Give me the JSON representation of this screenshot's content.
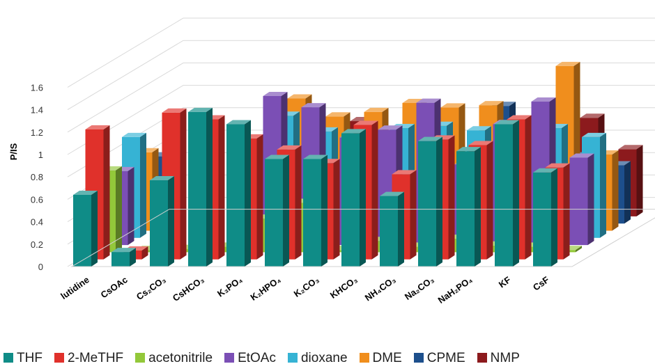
{
  "chart_data": {
    "type": "bar",
    "style": "3d-clustered-column",
    "title": "",
    "xlabel": "",
    "ylabel": "P/IS",
    "ylim": [
      0,
      1.6
    ],
    "yticks": [
      0,
      0.2,
      0.4,
      0.6,
      0.8,
      1,
      1.2,
      1.4,
      1.6
    ],
    "ytick_labels": [
      "0",
      "0.2",
      "0.4",
      "0.6",
      "0.8",
      "1",
      "1.2",
      "1.4",
      "1.6"
    ],
    "grid": true,
    "legend_position": "bottom",
    "categories": [
      "lutidine",
      "CsOAc",
      "Cs₂CO₃",
      "CsHCO₃",
      "K₃PO₄",
      "K₂HPO₄",
      "K₂CO₃",
      "KHCO₃",
      "NH₄CO₃",
      "Na₂CO₃",
      "NaH₂PO₄",
      "KF",
      "CsF"
    ],
    "series": [
      {
        "name": "THF",
        "color": "#0f8c87",
        "values": [
          0.64,
          0.13,
          0.77,
          1.38,
          1.27,
          0.96,
          0.96,
          1.19,
          0.63,
          1.12,
          1.03,
          1.27,
          0.84
        ]
      },
      {
        "name": "2-MeTHF",
        "color": "#e0312b",
        "values": [
          1.16,
          0.08,
          1.31,
          1.25,
          1.08,
          0.98,
          0.86,
          1.2,
          0.76,
          1.07,
          1.02,
          1.25,
          0.82
        ]
      },
      {
        "name": "acetonitrile",
        "color": "#93c83a",
        "values": [
          0.73,
          0.02,
          0.03,
          0.05,
          0.3,
          0.44,
          0.02,
          0.1,
          0.05,
          0.12,
          0.06,
          0.05,
          0.02
        ]
      },
      {
        "name": "EtOAc",
        "color": "#7b4fb5",
        "values": [
          0.66,
          0.0,
          0.0,
          0.0,
          1.33,
          1.23,
          0.96,
          1.03,
          1.27,
          0.72,
          1.08,
          1.28,
          0.78
        ]
      },
      {
        "name": "dioxane",
        "color": "#36b3d4",
        "values": [
          0.9,
          0.0,
          0.0,
          0.0,
          1.09,
          0.95,
          0.78,
          0.98,
          1.0,
          0.96,
          0.9,
          0.98,
          0.9
        ]
      },
      {
        "name": "DME",
        "color": "#f08e1d",
        "values": [
          0.7,
          0.0,
          0.0,
          0.0,
          1.18,
          1.02,
          1.06,
          1.14,
          1.1,
          1.12,
          0.8,
          1.47,
          0.68
        ]
      },
      {
        "name": "CPME",
        "color": "#1d4f8c",
        "values": [
          0.6,
          0.0,
          0.0,
          0.0,
          0.6,
          0.8,
          0.7,
          0.5,
          0.5,
          1.05,
          0.6,
          0.6,
          0.52
        ]
      },
      {
        "name": "NMP",
        "color": "#8c1a1d",
        "values": [
          0.3,
          0.0,
          0.0,
          0.0,
          0.3,
          0.85,
          0.3,
          0.3,
          0.3,
          0.3,
          0.3,
          0.88,
          0.6
        ]
      }
    ]
  },
  "legend": {
    "items": [
      {
        "label": "THF",
        "color": "#0f8c87"
      },
      {
        "label": "2-MeTHF",
        "color": "#e0312b"
      },
      {
        "label": "acetonitrile",
        "color": "#93c83a"
      },
      {
        "label": "EtOAc",
        "color": "#7b4fb5"
      },
      {
        "label": "dioxane",
        "color": "#36b3d4"
      },
      {
        "label": "DME",
        "color": "#f08e1d"
      },
      {
        "label": "CPME",
        "color": "#1d4f8c"
      },
      {
        "label": "NMP",
        "color": "#8c1a1d"
      }
    ]
  }
}
